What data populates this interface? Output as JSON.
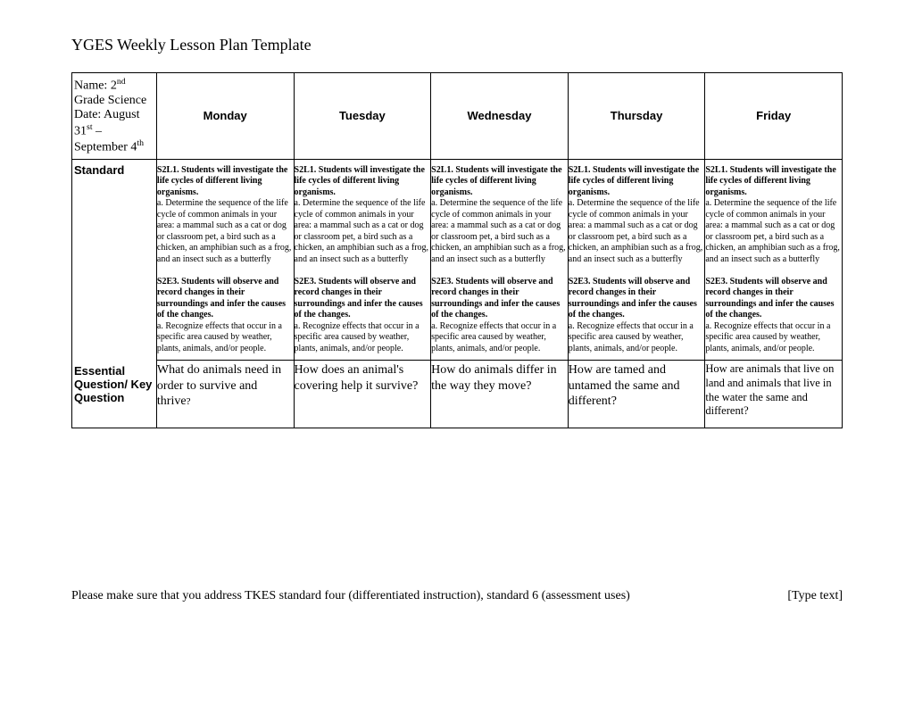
{
  "title": "YGES Weekly Lesson Plan Template",
  "header": {
    "name_line_html": "Name: 2<sup>nd</sup> Grade Science",
    "date_line_html": "Date: August 31<sup>st</sup> – September 4<sup>th</sup>",
    "days": [
      "Monday",
      "Tuesday",
      "Wednesday",
      "Thursday",
      "Friday"
    ]
  },
  "rows": {
    "standard_label": "Standard",
    "eq_label": "Essential Question/ Key Question"
  },
  "standard_text": {
    "s2l1_bold": "S2L1. Students will investigate the life cycles of different living organisms.",
    "s2l1_detail": "a. Determine the sequence of the life cycle of common animals in your area: a mammal such as a cat or dog or classroom pet, a bird such as a chicken, an amphibian such as a frog, and an insect such as a butterfly",
    "s2e3_bold": "S2E3. Students will observe and record changes in their surroundings and infer the causes of the changes.",
    "s2e3_detail": "a. Recognize effects that occur in a specific area caused by weather, plants, animals, and/or people."
  },
  "essential_questions": [
    "What do animals need in order to survive and thrive?",
    "How does an animal's covering help it survive?",
    "How do animals differ in the way they move?",
    "How are tamed and untamed the same and different?",
    "How are animals that live on land and animals that live in the water the same and different?"
  ],
  "footer": {
    "left": "Please make sure that you address TKES standard four (differentiated instruction), standard 6 (assessment uses)",
    "right": "[Type text]"
  }
}
